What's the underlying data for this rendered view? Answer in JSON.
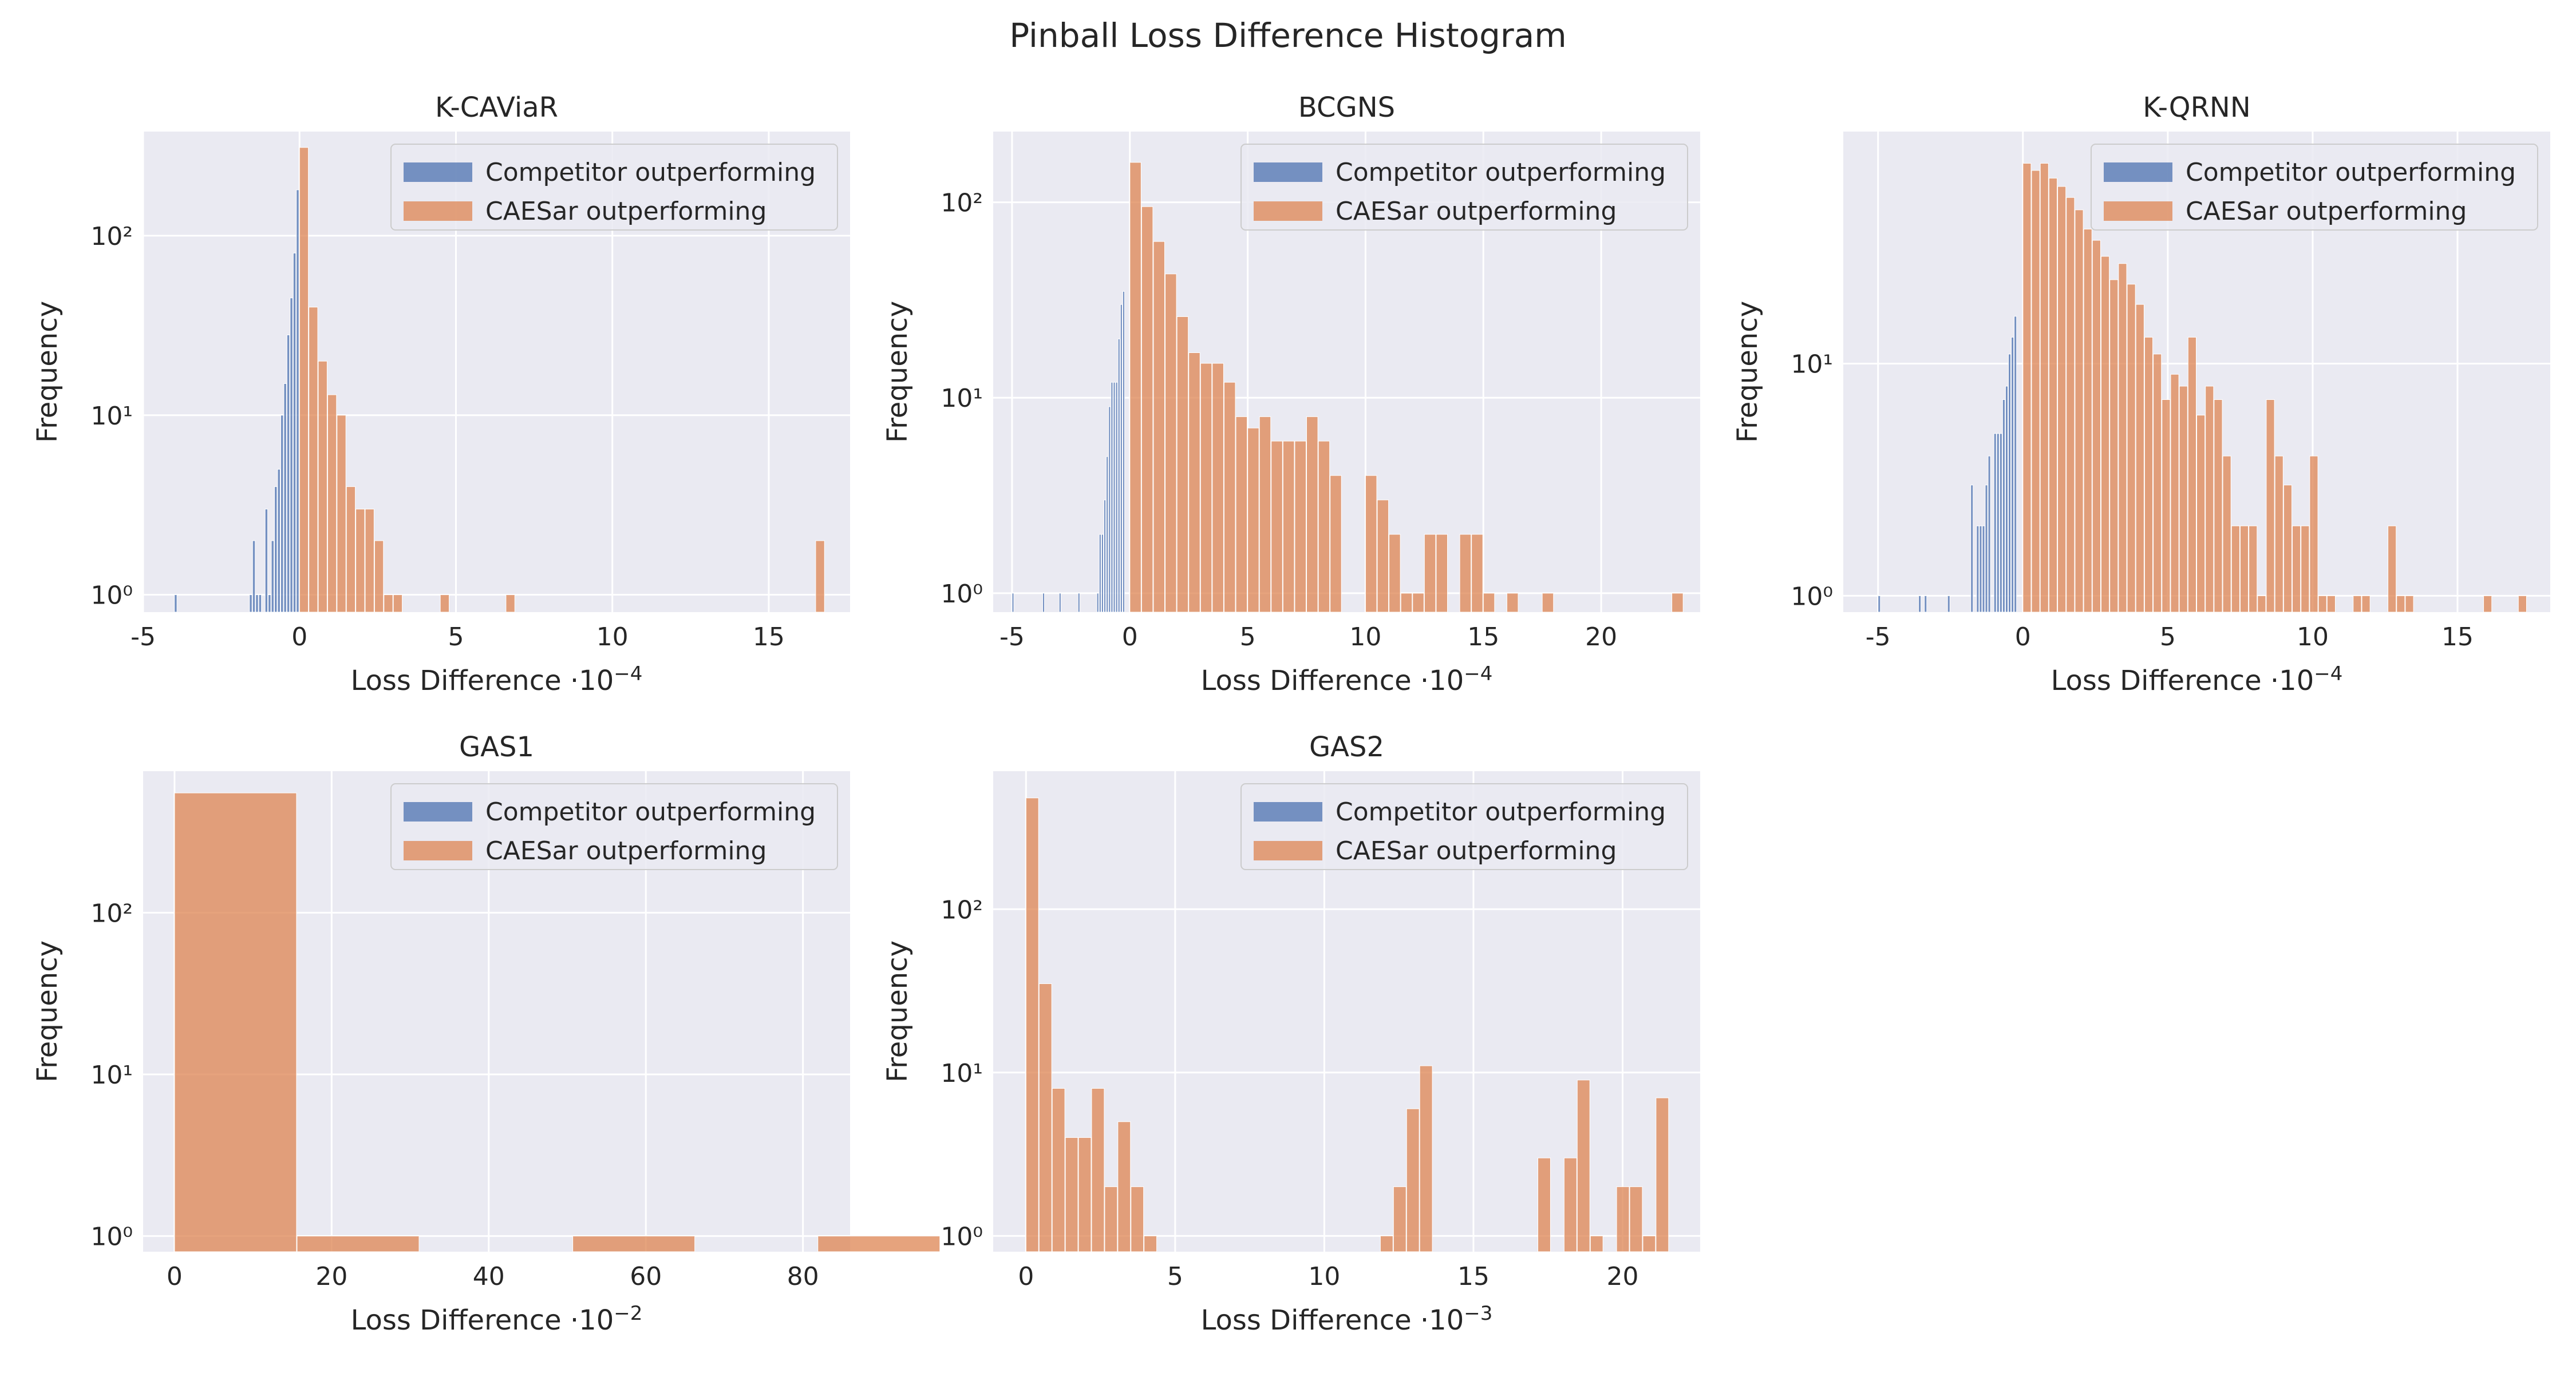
{
  "figure": {
    "title": "Pinball Loss Difference Histogram"
  },
  "colors": {
    "competitor": "#4c72b0",
    "caesar": "#dd8452",
    "axes_bg": "#eaeaf2",
    "grid": "#ffffff"
  },
  "chart_data": [
    {
      "type": "histogram",
      "title": "K-CAViaR",
      "xlabel": "Loss Difference",
      "xlabel_suffix": "·10",
      "xlabel_exp": "−4",
      "ylabel": "Frequency",
      "xlim": [
        -5,
        17.6
      ],
      "ylog": true,
      "ylim": [
        0.8,
        380
      ],
      "xticks": [
        -5,
        0,
        5,
        10,
        15
      ],
      "xtick_labels": [
        "-5",
        "0",
        "5",
        "10",
        "15"
      ],
      "yticks": [
        1,
        10,
        100
      ],
      "ytick_labels": [
        "10⁰",
        "10¹",
        "10²"
      ],
      "legend": {
        "position": "top-right",
        "entries": [
          "Competitor outperforming",
          "CAESar outperforming"
        ]
      },
      "competitor_bins": [
        [
          -4.0,
          1
        ],
        [
          -1.6,
          1
        ],
        [
          -1.5,
          2
        ],
        [
          -1.4,
          1
        ],
        [
          -1.3,
          1
        ],
        [
          -1.1,
          3
        ],
        [
          -1.0,
          1
        ],
        [
          -0.9,
          2
        ],
        [
          -0.8,
          4
        ],
        [
          -0.7,
          5
        ],
        [
          -0.6,
          10
        ],
        [
          -0.5,
          15
        ],
        [
          -0.4,
          28
        ],
        [
          -0.3,
          45
        ],
        [
          -0.2,
          80
        ],
        [
          -0.1,
          180
        ]
      ],
      "caesar_bins": [
        [
          0,
          310
        ],
        [
          0.3,
          40
        ],
        [
          0.6,
          20
        ],
        [
          0.9,
          13
        ],
        [
          1.2,
          10
        ],
        [
          1.5,
          4
        ],
        [
          1.8,
          3
        ],
        [
          2.1,
          3
        ],
        [
          2.4,
          2
        ],
        [
          2.7,
          1
        ],
        [
          3.0,
          1
        ],
        [
          4.5,
          1
        ],
        [
          6.6,
          1
        ],
        [
          16.5,
          2
        ]
      ]
    },
    {
      "type": "histogram",
      "title": "BCGNS",
      "xlabel": "Loss Difference",
      "xlabel_suffix": "·10",
      "xlabel_exp": "−4",
      "ylabel": "Frequency",
      "xlim": [
        -5.8,
        24.2
      ],
      "ylog": true,
      "ylim": [
        0.8,
        230
      ],
      "xticks": [
        -5,
        0,
        5,
        10,
        15,
        20
      ],
      "xtick_labels": [
        "-5",
        "0",
        "5",
        "10",
        "15",
        "20"
      ],
      "yticks": [
        1,
        10,
        100
      ],
      "ytick_labels": [
        "10⁰",
        "10¹",
        "10²"
      ],
      "legend": {
        "position": "top-right",
        "entries": [
          "Competitor outperforming",
          "CAESar outperforming"
        ]
      },
      "competitor_bins": [
        [
          -5.0,
          1
        ],
        [
          -3.7,
          1
        ],
        [
          -3.0,
          1
        ],
        [
          -2.2,
          1
        ],
        [
          -1.4,
          1
        ],
        [
          -1.3,
          2
        ],
        [
          -1.2,
          2
        ],
        [
          -1.1,
          3
        ],
        [
          -1.0,
          5
        ],
        [
          -0.9,
          9
        ],
        [
          -0.8,
          12
        ],
        [
          -0.7,
          12
        ],
        [
          -0.6,
          12
        ],
        [
          -0.5,
          20
        ],
        [
          -0.4,
          30
        ],
        [
          -0.3,
          35
        ]
      ],
      "caesar_bins": [
        [
          0,
          160
        ],
        [
          0.5,
          95
        ],
        [
          1.0,
          63
        ],
        [
          1.5,
          43
        ],
        [
          2.0,
          26
        ],
        [
          2.5,
          17
        ],
        [
          3.0,
          15
        ],
        [
          3.5,
          15
        ],
        [
          4.0,
          12
        ],
        [
          4.5,
          8
        ],
        [
          5.0,
          7
        ],
        [
          5.5,
          8
        ],
        [
          6.0,
          6
        ],
        [
          6.5,
          6
        ],
        [
          7.0,
          6
        ],
        [
          7.5,
          8
        ],
        [
          8.0,
          6
        ],
        [
          8.5,
          4
        ],
        [
          10.0,
          4
        ],
        [
          10.5,
          3
        ],
        [
          11.0,
          2
        ],
        [
          11.5,
          1
        ],
        [
          12.0,
          1
        ],
        [
          12.5,
          2
        ],
        [
          13.0,
          2
        ],
        [
          14.0,
          2
        ],
        [
          14.5,
          2
        ],
        [
          15.0,
          1
        ],
        [
          16.0,
          1
        ],
        [
          17.5,
          1
        ],
        [
          23.0,
          1
        ]
      ]
    },
    {
      "type": "histogram",
      "title": "K-QRNN",
      "xlabel": "Loss Difference",
      "xlabel_suffix": "·10",
      "xlabel_exp": "−4",
      "ylabel": "Frequency",
      "xlim": [
        -6.2,
        18.2
      ],
      "ylog": true,
      "ylim": [
        0.85,
        100
      ],
      "xticks": [
        -5,
        0,
        5,
        10,
        15
      ],
      "xtick_labels": [
        "-5",
        "0",
        "5",
        "10",
        "15"
      ],
      "yticks": [
        1,
        10
      ],
      "ytick_labels": [
        "10⁰",
        "10¹"
      ],
      "legend": {
        "position": "top-right",
        "entries": [
          "Competitor outperforming",
          "CAESar outperforming"
        ]
      },
      "competitor_bins": [
        [
          -5.0,
          1
        ],
        [
          -3.6,
          1
        ],
        [
          -3.4,
          1
        ],
        [
          -2.6,
          1
        ],
        [
          -1.8,
          3
        ],
        [
          -1.6,
          2
        ],
        [
          -1.5,
          2
        ],
        [
          -1.4,
          2
        ],
        [
          -1.3,
          3
        ],
        [
          -1.2,
          4
        ],
        [
          -1.0,
          5
        ],
        [
          -0.9,
          5
        ],
        [
          -0.8,
          5
        ],
        [
          -0.7,
          7
        ],
        [
          -0.6,
          8
        ],
        [
          -0.5,
          11
        ],
        [
          -0.4,
          13
        ],
        [
          -0.3,
          16
        ]
      ],
      "caesar_bins": [
        [
          0,
          73
        ],
        [
          0.3,
          68
        ],
        [
          0.6,
          73
        ],
        [
          0.9,
          63
        ],
        [
          1.2,
          58
        ],
        [
          1.5,
          52
        ],
        [
          1.8,
          46
        ],
        [
          2.1,
          38
        ],
        [
          2.4,
          34
        ],
        [
          2.7,
          29
        ],
        [
          3.0,
          23
        ],
        [
          3.3,
          27
        ],
        [
          3.6,
          22
        ],
        [
          3.9,
          18
        ],
        [
          4.2,
          13
        ],
        [
          4.5,
          11
        ],
        [
          4.8,
          7
        ],
        [
          5.1,
          9
        ],
        [
          5.4,
          8
        ],
        [
          5.7,
          13
        ],
        [
          6.0,
          6
        ],
        [
          6.3,
          8
        ],
        [
          6.6,
          7
        ],
        [
          6.9,
          4
        ],
        [
          7.2,
          2
        ],
        [
          7.5,
          2
        ],
        [
          7.8,
          2
        ],
        [
          8.1,
          1
        ],
        [
          8.4,
          7
        ],
        [
          8.7,
          4
        ],
        [
          9.0,
          3
        ],
        [
          9.3,
          2
        ],
        [
          9.6,
          2
        ],
        [
          9.9,
          4
        ],
        [
          10.2,
          1
        ],
        [
          10.5,
          1
        ],
        [
          11.4,
          1
        ],
        [
          11.7,
          1
        ],
        [
          12.6,
          2
        ],
        [
          12.9,
          1
        ],
        [
          13.2,
          1
        ],
        [
          15.9,
          1
        ],
        [
          17.1,
          1
        ]
      ]
    },
    {
      "type": "histogram",
      "title": "GAS1",
      "xlabel": "Loss Difference",
      "xlabel_suffix": "·10",
      "xlabel_exp": "−2",
      "ylabel": "Frequency",
      "xlim": [
        -4,
        86
      ],
      "ylog": true,
      "ylim": [
        0.8,
        750
      ],
      "xticks": [
        0,
        20,
        40,
        60,
        80
      ],
      "xtick_labels": [
        "0",
        "20",
        "40",
        "60",
        "80"
      ],
      "yticks": [
        1,
        10,
        100
      ],
      "ytick_labels": [
        "10⁰",
        "10¹",
        "10²"
      ],
      "legend": {
        "position": "top-right",
        "entries": [
          "Competitor outperforming",
          "CAESar outperforming"
        ]
      },
      "competitor_bins": [],
      "caesar_bins": [
        [
          0,
          550
        ],
        [
          15.6,
          1
        ],
        [
          50.7,
          1
        ],
        [
          81.9,
          1
        ]
      ]
    },
    {
      "type": "histogram",
      "title": "GAS2",
      "xlabel": "Loss Difference",
      "xlabel_suffix": "·10",
      "xlabel_exp": "−3",
      "ylabel": "Frequency",
      "xlim": [
        -1.1,
        22.6
      ],
      "ylog": true,
      "ylim": [
        0.8,
        700
      ],
      "xticks": [
        0,
        5,
        10,
        15,
        20
      ],
      "xtick_labels": [
        "0",
        "5",
        "10",
        "15",
        "20"
      ],
      "yticks": [
        1,
        10,
        100
      ],
      "ytick_labels": [
        "10⁰",
        "10¹",
        "10²"
      ],
      "legend": {
        "position": "top-right",
        "entries": [
          "Competitor outperforming",
          "CAESar outperforming"
        ]
      },
      "competitor_bins": [],
      "caesar_bins": [
        [
          0,
          480
        ],
        [
          0.44,
          35
        ],
        [
          0.88,
          8
        ],
        [
          1.32,
          4
        ],
        [
          1.76,
          4
        ],
        [
          2.2,
          8
        ],
        [
          2.64,
          2
        ],
        [
          3.08,
          5
        ],
        [
          3.52,
          2
        ],
        [
          3.96,
          1
        ],
        [
          11.88,
          1
        ],
        [
          12.32,
          2
        ],
        [
          12.76,
          6
        ],
        [
          13.2,
          11
        ],
        [
          17.16,
          3
        ],
        [
          18.04,
          3
        ],
        [
          18.48,
          9
        ],
        [
          18.92,
          1
        ],
        [
          19.8,
          2
        ],
        [
          20.24,
          2
        ],
        [
          20.68,
          1
        ],
        [
          21.12,
          7
        ]
      ]
    }
  ]
}
